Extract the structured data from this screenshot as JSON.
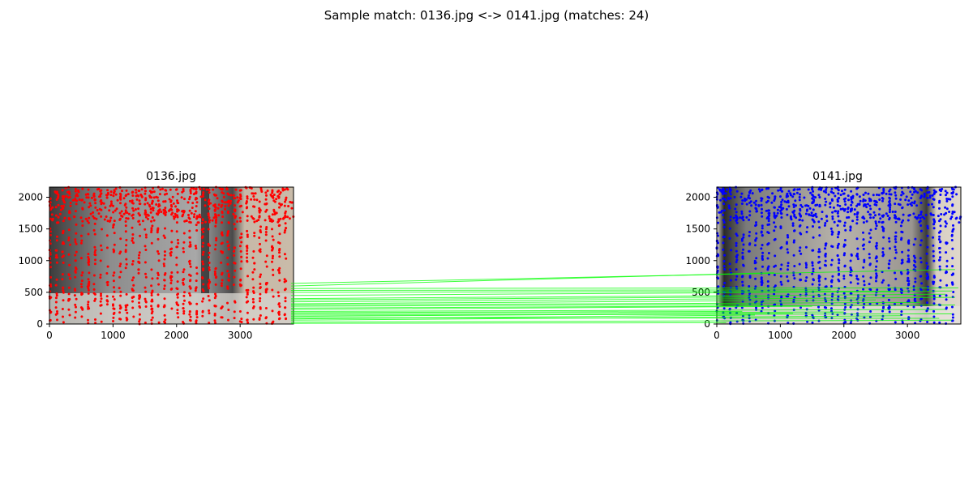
{
  "figure": {
    "title": "Sample match: 0136.jpg <-> 0141.jpg (matches: 24)",
    "match_color": "#00ff00",
    "left_keypoint_color": "#ff0000",
    "right_keypoint_color": "#0000ff"
  },
  "chart_data": [
    {
      "type": "scatter",
      "title": "0136.jpg",
      "image": "photo-0136",
      "keypoint_color": "#ff0000",
      "xlim": [
        0,
        3840
      ],
      "ylim": [
        2160,
        0
      ],
      "xticks": [
        "0",
        "1000",
        "2000",
        "3000"
      ],
      "yticks": [
        "0",
        "500",
        "1000",
        "1500",
        "2000"
      ],
      "xtick_values": [
        0,
        1000,
        2000,
        3000
      ],
      "ytick_values": [
        0,
        500,
        1000,
        1500,
        2000
      ]
    },
    {
      "type": "scatter",
      "title": "0141.jpg",
      "image": "photo-0141",
      "keypoint_color": "#0000ff",
      "xlim": [
        0,
        3840
      ],
      "ylim": [
        2160,
        0
      ],
      "xticks": [
        "0",
        "1000",
        "2000",
        "3000"
      ],
      "yticks": [
        "0",
        "500",
        "1000",
        "1500",
        "2000"
      ],
      "xtick_values": [
        0,
        1000,
        2000,
        3000
      ],
      "ytick_values": [
        0,
        500,
        1000,
        1500,
        2000
      ]
    }
  ],
  "matches": [
    {
      "left": [
        3800,
        10
      ],
      "right": [
        150,
        20
      ]
    },
    {
      "left": [
        3800,
        30
      ],
      "right": [
        3700,
        60
      ]
    },
    {
      "left": [
        3800,
        60
      ],
      "right": [
        2900,
        130
      ]
    },
    {
      "left": [
        3800,
        80
      ],
      "right": [
        600,
        140
      ]
    },
    {
      "left": [
        3800,
        100
      ],
      "right": [
        3500,
        90
      ]
    },
    {
      "left": [
        3800,
        120
      ],
      "right": [
        1200,
        170
      ]
    },
    {
      "left": [
        3800,
        140
      ],
      "right": [
        3700,
        160
      ]
    },
    {
      "left": [
        3800,
        160
      ],
      "right": [
        2000,
        190
      ]
    },
    {
      "left": [
        3800,
        180
      ],
      "right": [
        400,
        200
      ]
    },
    {
      "left": [
        3800,
        200
      ],
      "right": [
        3600,
        230
      ]
    },
    {
      "left": [
        3800,
        230
      ],
      "right": [
        1500,
        280
      ]
    },
    {
      "left": [
        3800,
        250
      ],
      "right": [
        3750,
        300
      ]
    },
    {
      "left": [
        3800,
        280
      ],
      "right": [
        700,
        310
      ]
    },
    {
      "left": [
        3800,
        300
      ],
      "right": [
        3200,
        340
      ]
    },
    {
      "left": [
        3800,
        320
      ],
      "right": [
        2500,
        380
      ]
    },
    {
      "left": [
        3800,
        350
      ],
      "right": [
        3750,
        420
      ]
    },
    {
      "left": [
        3800,
        380
      ],
      "right": [
        1000,
        430
      ]
    },
    {
      "left": [
        3800,
        400
      ],
      "right": [
        3600,
        470
      ]
    },
    {
      "left": [
        3800,
        450
      ],
      "right": [
        2800,
        510
      ]
    },
    {
      "left": [
        3800,
        500
      ],
      "right": [
        3700,
        520
      ]
    },
    {
      "left": [
        3800,
        530
      ],
      "right": [
        1800,
        540
      ]
    },
    {
      "left": [
        3800,
        560
      ],
      "right": [
        3800,
        570
      ]
    },
    {
      "left": [
        3800,
        600
      ],
      "right": [
        900,
        810
      ]
    },
    {
      "left": [
        3800,
        640
      ],
      "right": [
        3750,
        860
      ]
    }
  ]
}
